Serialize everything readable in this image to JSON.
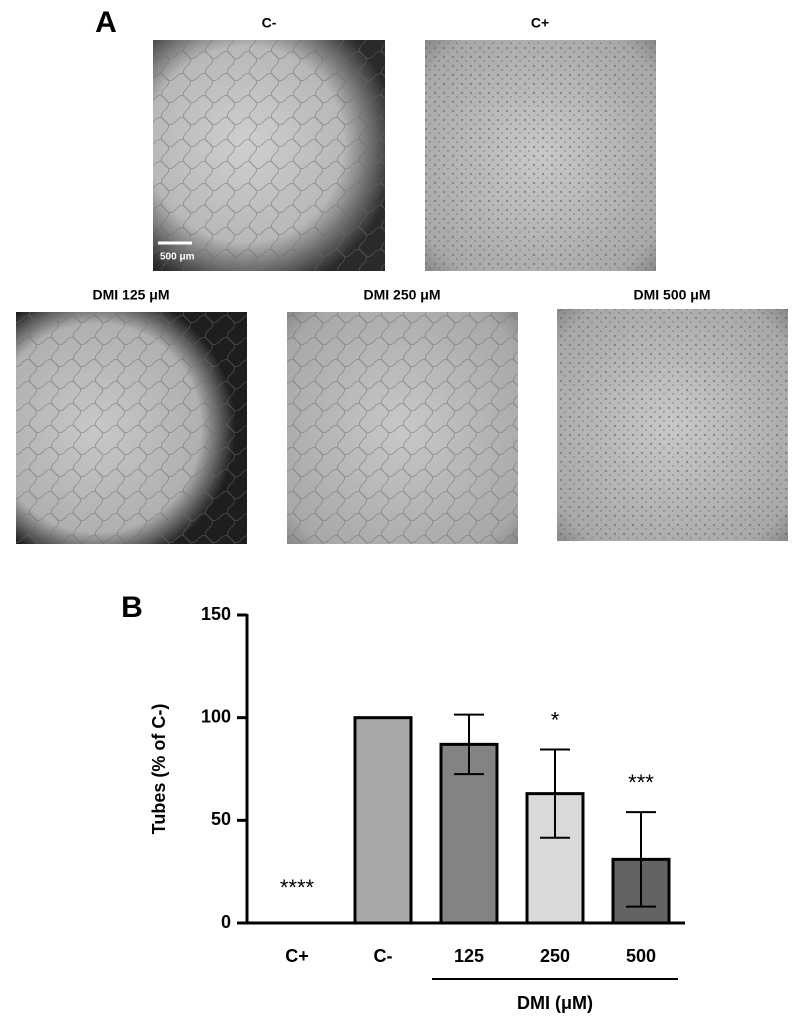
{
  "panel_a": {
    "label": "A",
    "images": [
      "C-",
      "C+",
      "DMI 125 μM",
      "DMI 250 μM",
      "DMI 500 μM"
    ],
    "scale_bar": "500 μm"
  },
  "chart_data": {
    "type": "bar",
    "panel_label": "B",
    "y_label": "Tubes (% of C-)",
    "categories": [
      "C+",
      "C-",
      "125",
      "250",
      "500"
    ],
    "values": [
      0,
      100,
      87,
      63,
      31
    ],
    "errors": [
      null,
      null,
      14.5,
      21.5,
      23
    ],
    "colors": [
      "#ffffff",
      "#a8a8a8",
      "#838383",
      "#d9d9d9",
      "#636363"
    ],
    "annotations": [
      "****",
      null,
      null,
      "*",
      "***"
    ],
    "group_label": "DMI (μM)",
    "ylim": [
      0,
      150
    ],
    "yticks": [
      0,
      50,
      100,
      150
    ]
  }
}
